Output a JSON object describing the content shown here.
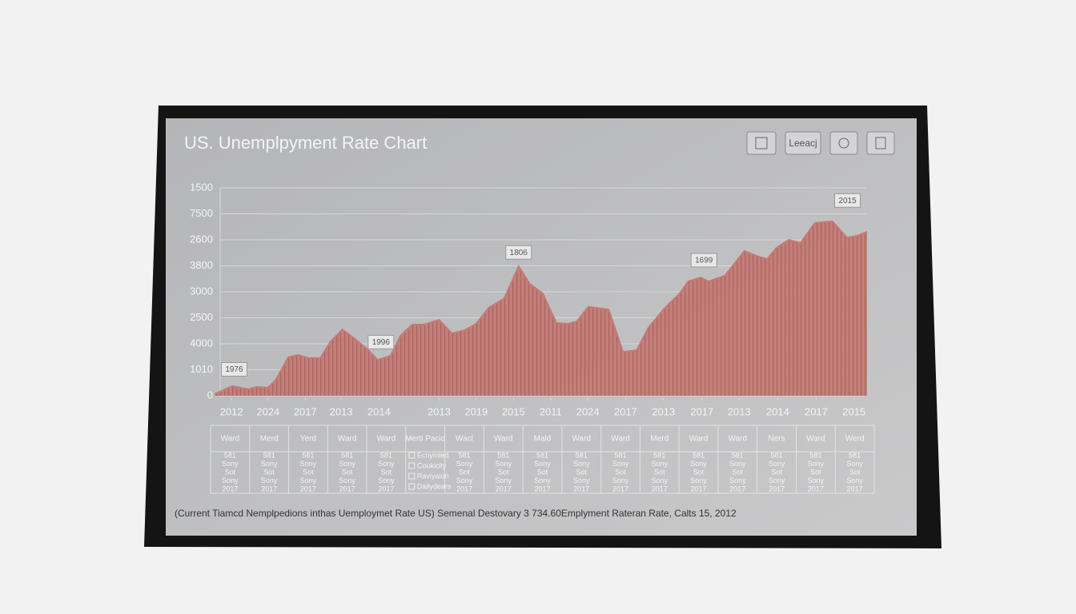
{
  "chart_data": {
    "type": "area",
    "title": "US. Unemplpyment Rate Chart",
    "color": "#c47b75",
    "x": [
      0,
      2.7,
      5.2,
      6.4,
      8.2,
      9.4,
      11.3,
      12.8,
      14.4,
      16.2,
      17.7,
      19.6,
      21.7,
      23.6,
      25.0,
      27.0,
      28.5,
      30.3,
      32.1,
      34.4,
      36.4,
      38.3,
      40.1,
      42.0,
      44.4,
      46.6,
      48.3,
      50.3,
      52.4,
      54.2,
      55.5,
      57.3,
      60.4,
      62.6,
      64.7,
      66.5,
      69.0,
      71.2,
      72.6,
      74.5,
      75.7,
      78.2,
      81.2,
      83.1,
      84.7,
      86.1,
      88.0,
      89.8,
      92.0,
      94.7,
      96.9,
      98.4,
      100
    ],
    "values": [
      0.06,
      0.37,
      0.25,
      0.34,
      0.31,
      0.62,
      1.48,
      1.57,
      1.45,
      1.45,
      2.06,
      2.55,
      2.15,
      1.75,
      1.38,
      1.54,
      2.31,
      2.74,
      2.74,
      2.92,
      2.4,
      2.52,
      2.77,
      3.38,
      3.75,
      4.98,
      4.31,
      3.94,
      2.8,
      2.77,
      2.86,
      3.42,
      3.32,
      1.69,
      1.75,
      2.62,
      3.38,
      3.91,
      4.4,
      4.55,
      4.4,
      4.62,
      5.57,
      5.38,
      5.26,
      5.69,
      6.0,
      5.88,
      6.65,
      6.71,
      6.09,
      6.15,
      6.31
    ],
    "xlim": [
      0,
      100
    ],
    "ylim": [
      0,
      8
    ],
    "yticks": [
      0,
      {
        "value": 1,
        "label": "1010"
      },
      {
        "value": 2,
        "label": "4000"
      },
      {
        "value": 3,
        "label": "2500"
      },
      {
        "value": 4,
        "label": "3000"
      },
      {
        "value": 5,
        "label": "3800"
      },
      {
        "value": 6,
        "label": "2600"
      },
      {
        "value": 7,
        "label": "7500"
      },
      {
        "value": 8,
        "label": "1500"
      }
    ],
    "xticks": [
      {
        "value": 2.6,
        "label": "2012"
      },
      {
        "value": 8.2,
        "label": "2024"
      },
      {
        "value": 13.9,
        "label": "2017"
      },
      {
        "value": 19.4,
        "label": "2013"
      },
      {
        "value": 25.2,
        "label": "2014"
      },
      {
        "value": 34.4,
        "label": "2013"
      },
      {
        "value": 40.1,
        "label": "2019"
      },
      {
        "value": 45.8,
        "label": "2015"
      },
      {
        "value": 51.5,
        "label": "2011"
      },
      {
        "value": 57.2,
        "label": "2024"
      },
      {
        "value": 63.0,
        "label": "2017"
      },
      {
        "value": 68.8,
        "label": "2013"
      },
      {
        "value": 74.7,
        "label": "2017"
      },
      {
        "value": 80.4,
        "label": "2013"
      },
      {
        "value": 86.3,
        "label": "2014"
      },
      {
        "value": 92.2,
        "label": "2017"
      },
      {
        "value": 98.0,
        "label": "2015"
      }
    ],
    "grid": true,
    "annotations": [
      {
        "text": "1976",
        "x": 3,
        "y": 1
      },
      {
        "text": "1996",
        "x": 25.5,
        "y": 2.05
      },
      {
        "text": "1806",
        "x": 46.6,
        "y": 5.5
      },
      {
        "text": "1699",
        "x": 75,
        "y": 5.2
      },
      {
        "text": "2015",
        "x": 97,
        "y": 7.5
      }
    ]
  },
  "toolbar": {
    "label": "Leeacj"
  },
  "table": {
    "headers": [
      "Ward",
      "Merd",
      "Yerd",
      "Ward",
      "Ward",
      "Merti Pacid",
      "Wacl",
      "Ward",
      "Mald",
      "Ward",
      "Ward",
      "Merd",
      "Ward",
      "Ward",
      "Ners",
      "Ward",
      "Werd"
    ],
    "cell_lines": [
      "581",
      "Sony",
      "Sot",
      "Sony",
      "2017"
    ],
    "legend_lines": [
      "Ecnymied",
      "Coukicity",
      "Raviyaion",
      "Dailydears"
    ]
  },
  "footer": "(Current Tiamcd Nemplpedions inthas Uemploymet Rate US) Semenal Destovary 3 734.60Emplyment Rateran Rate, Calts 15, 2012"
}
